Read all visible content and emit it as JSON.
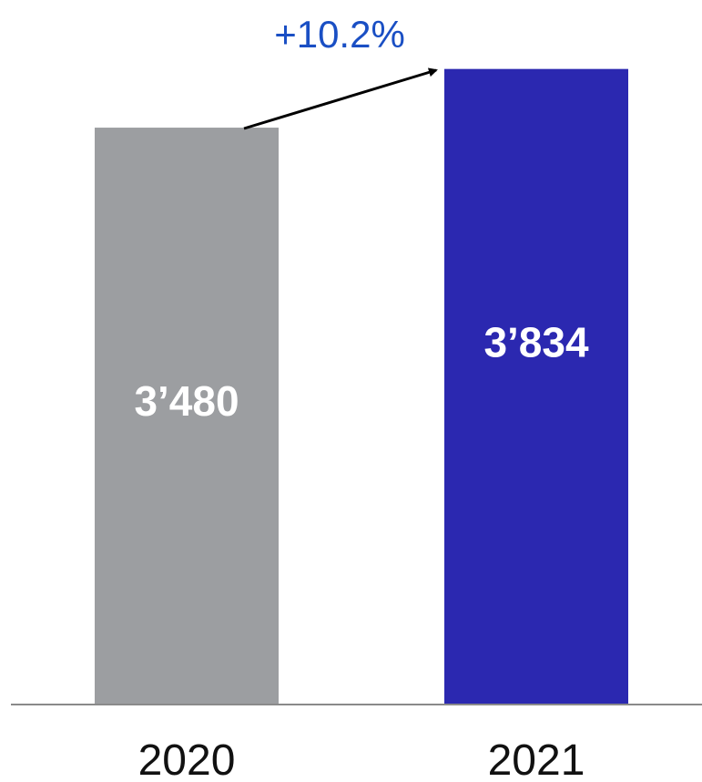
{
  "chart_data": {
    "type": "bar",
    "title": "",
    "xlabel": "",
    "ylabel": "",
    "categories": [
      "2020",
      "2021"
    ],
    "values": [
      3480,
      3834
    ],
    "value_labels": [
      "3’480",
      "3’834"
    ],
    "ylim": [
      0,
      4250
    ],
    "grid": false,
    "legend": "none",
    "bar_colors": [
      "#9c9ea1",
      "#2b28b0"
    ],
    "annotation": {
      "text": "+10.2%",
      "color": "#1a4fc4",
      "arrow": "from 2020 bar to 2021 bar"
    }
  }
}
